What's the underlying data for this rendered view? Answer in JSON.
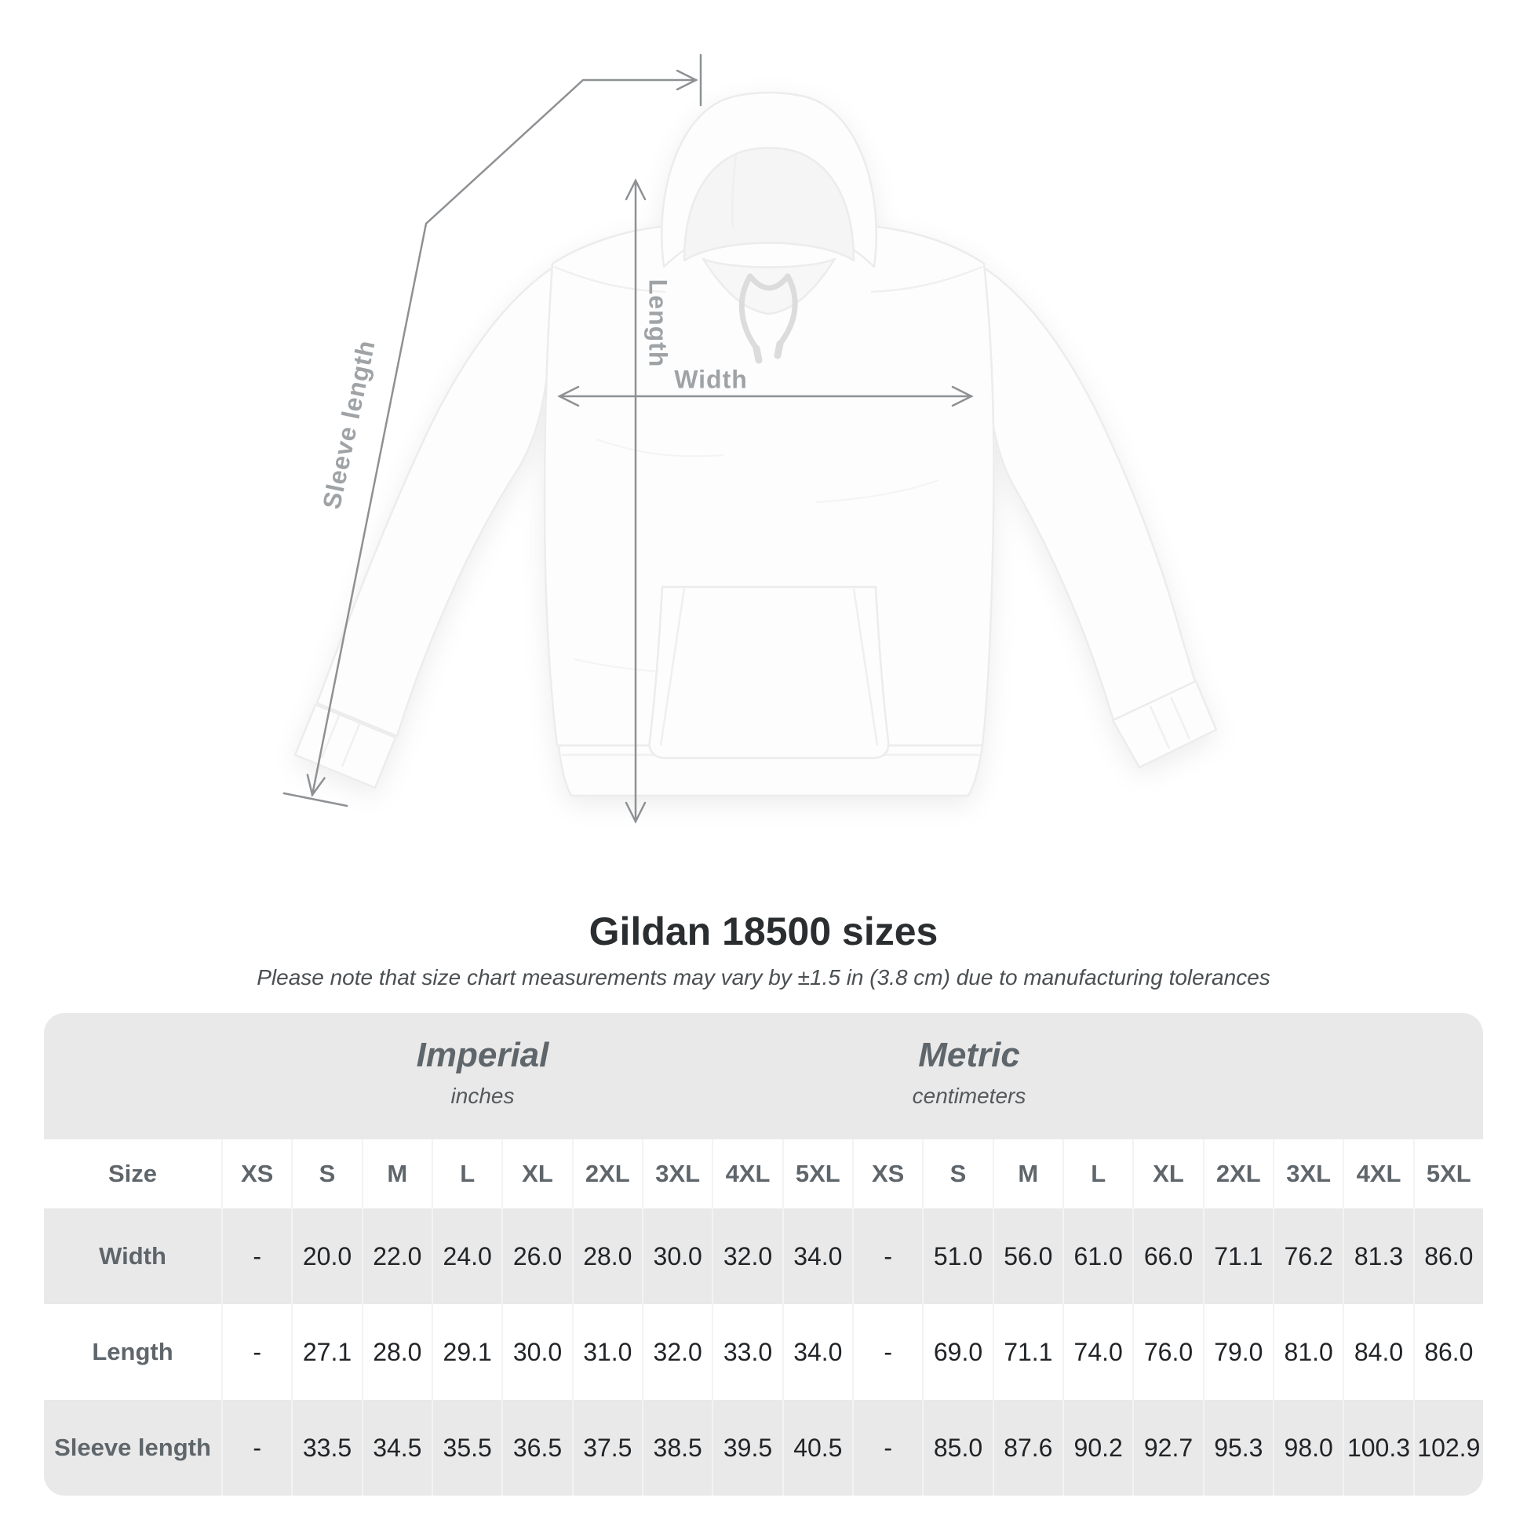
{
  "diagram": {
    "length_label": "Length",
    "width_label": "Width",
    "sleeve_label": "Sleeve length"
  },
  "header": {
    "title": "Gildan 18500 sizes",
    "subtitle": "Please note that size chart measurements may vary by ±1.5 in (3.8 cm) due to manufacturing tolerances"
  },
  "chart_data": {
    "type": "table",
    "title": "Gildan 18500 sizes",
    "unit_groups": [
      {
        "name": "Imperial",
        "unit": "inches"
      },
      {
        "name": "Metric",
        "unit": "centimeters"
      }
    ],
    "size_header": "Size",
    "sizes": [
      "XS",
      "S",
      "M",
      "L",
      "XL",
      "2XL",
      "3XL",
      "4XL",
      "5XL"
    ],
    "rows": [
      {
        "label": "Width",
        "imperial": [
          "-",
          "20.0",
          "22.0",
          "24.0",
          "26.0",
          "28.0",
          "30.0",
          "32.0",
          "34.0"
        ],
        "metric": [
          "-",
          "51.0",
          "56.0",
          "61.0",
          "66.0",
          "71.1",
          "76.2",
          "81.3",
          "86.0"
        ]
      },
      {
        "label": "Length",
        "imperial": [
          "-",
          "27.1",
          "28.0",
          "29.1",
          "30.0",
          "31.0",
          "32.0",
          "33.0",
          "34.0"
        ],
        "metric": [
          "-",
          "69.0",
          "71.1",
          "74.0",
          "76.0",
          "79.0",
          "81.0",
          "84.0",
          "86.0"
        ]
      },
      {
        "label": "Sleeve length",
        "imperial": [
          "-",
          "33.5",
          "34.5",
          "35.5",
          "36.5",
          "37.5",
          "38.5",
          "39.5",
          "40.5"
        ],
        "metric": [
          "-",
          "85.0",
          "87.6",
          "90.2",
          "92.7",
          "95.3",
          "98.0",
          "100.3",
          "102.9"
        ]
      }
    ]
  },
  "colors": {
    "measure_line": "#8e9194",
    "measure_label": "#9fa3a6",
    "table_bg": "#e9e9e9",
    "header_text": "#5f666b",
    "value_text": "#212427",
    "title_text": "#2b2e30"
  }
}
